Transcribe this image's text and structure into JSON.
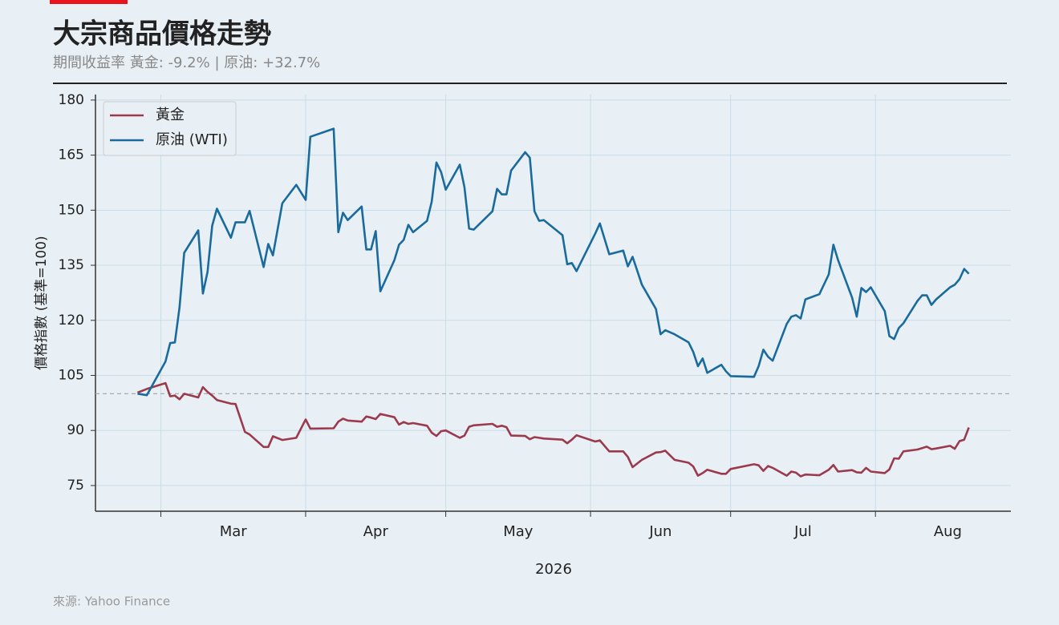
{
  "chart_data": {
    "type": "line",
    "title": "大宗商品價格走勢",
    "subtitle": "期間收益率 黃金: -9.2% | 原油: +32.7%",
    "xlabel": "2026",
    "ylabel": "價格指數 (基準=100)",
    "source": "來源: Yahoo Finance",
    "x": [
      "2026-02-24",
      "2026-02-26",
      "2026-03-02",
      "2026-03-03",
      "2026-03-04",
      "2026-03-05",
      "2026-03-06",
      "2026-03-09",
      "2026-03-10",
      "2026-03-11",
      "2026-03-12",
      "2026-03-13",
      "2026-03-16",
      "2026-03-17",
      "2026-03-19",
      "2026-03-20",
      "2026-03-23",
      "2026-03-24",
      "2026-03-25",
      "2026-03-27",
      "2026-03-30",
      "2026-04-01",
      "2026-04-02",
      "2026-04-07",
      "2026-04-08",
      "2026-04-09",
      "2026-04-10",
      "2026-04-13",
      "2026-04-14",
      "2026-04-15",
      "2026-04-16",
      "2026-04-17",
      "2026-04-20",
      "2026-04-21",
      "2026-04-22",
      "2026-04-23",
      "2026-04-24",
      "2026-04-27",
      "2026-04-28",
      "2026-04-29",
      "2026-04-30",
      "2026-05-01",
      "2026-05-04",
      "2026-05-05",
      "2026-05-06",
      "2026-05-07",
      "2026-05-11",
      "2026-05-12",
      "2026-05-13",
      "2026-05-14",
      "2026-05-15",
      "2026-05-18",
      "2026-05-19",
      "2026-05-20",
      "2026-05-21",
      "2026-05-22",
      "2026-05-26",
      "2026-05-27",
      "2026-05-28",
      "2026-05-29",
      "2026-06-02",
      "2026-06-03",
      "2026-06-05",
      "2026-06-08",
      "2026-06-09",
      "2026-06-10",
      "2026-06-12",
      "2026-06-15",
      "2026-06-16",
      "2026-06-17",
      "2026-06-19",
      "2026-06-22",
      "2026-06-23",
      "2026-06-24",
      "2026-06-25",
      "2026-06-26",
      "2026-06-29",
      "2026-06-30",
      "2026-07-01",
      "2026-07-06",
      "2026-07-07",
      "2026-07-08",
      "2026-07-09",
      "2026-07-10",
      "2026-07-13",
      "2026-07-14",
      "2026-07-15",
      "2026-07-16",
      "2026-07-17",
      "2026-07-20",
      "2026-07-22",
      "2026-07-23",
      "2026-07-24",
      "2026-07-27",
      "2026-07-28",
      "2026-07-29",
      "2026-07-30",
      "2026-07-31",
      "2026-08-03",
      "2026-08-04",
      "2026-08-05",
      "2026-08-06",
      "2026-08-07",
      "2026-08-10",
      "2026-08-11",
      "2026-08-12",
      "2026-08-13",
      "2026-08-14",
      "2026-08-17",
      "2026-08-18",
      "2026-08-19",
      "2026-08-20",
      "2026-08-21"
    ],
    "series": [
      {
        "name": "黃金",
        "color": "#9b3a4d",
        "values": [
          100.3,
          101.3,
          102.9,
          99.3,
          99.5,
          98.5,
          100,
          99,
          101.8,
          100.5,
          99.5,
          98.3,
          97.3,
          97.2,
          89.6,
          88.9,
          85.5,
          85.5,
          88.4,
          87.4,
          88,
          93,
          90.5,
          90.6,
          92.4,
          93.2,
          92.7,
          92.4,
          93.8,
          93.5,
          93.1,
          94.5,
          93.6,
          91.6,
          92.3,
          91.8,
          92,
          91.3,
          89.4,
          88.5,
          89.8,
          90,
          88,
          88.6,
          91,
          91.4,
          91.8,
          91,
          91.3,
          90.9,
          88.6,
          88.5,
          87.6,
          88.2,
          88,
          87.8,
          87.5,
          86.5,
          87.5,
          88.7,
          87,
          87.3,
          84.3,
          84.3,
          82.8,
          80,
          82,
          84,
          84.1,
          84.5,
          82,
          81.2,
          80.2,
          77.7,
          78.4,
          79.3,
          78.2,
          78.2,
          79.5,
          80.8,
          80.5,
          79,
          80.3,
          79.8,
          77.7,
          78.8,
          78.5,
          77.5,
          78,
          77.8,
          79.3,
          80.6,
          78.8,
          79.2,
          78.6,
          78.5,
          79.8,
          78.8,
          78.4,
          79.4,
          82.4,
          82.3,
          84.3,
          84.8,
          85.2,
          85.6,
          84.9,
          85.1,
          85.8,
          85,
          87.1,
          87.5,
          90.8
        ]
      },
      {
        "name": "原油 (WTI)",
        "color": "#1a6b9c",
        "values": [
          100,
          99.6,
          108.8,
          113.8,
          114,
          123.6,
          138.4,
          144.5,
          127.3,
          133.2,
          145.8,
          150.4,
          142.5,
          146.7,
          146.7,
          149.8,
          134.5,
          140.8,
          137.7,
          151.9,
          156.9,
          152.8,
          170,
          172.2,
          144,
          149.3,
          147.3,
          151,
          139.3,
          139.3,
          144.3,
          127.9,
          136.4,
          140.6,
          141.9,
          146,
          144,
          147.1,
          152.3,
          163,
          160.4,
          155.6,
          162.4,
          156.3,
          145,
          144.7,
          149.7,
          155.8,
          154.3,
          154.3,
          160.8,
          165.8,
          164.3,
          149.7,
          147.1,
          147.3,
          143.2,
          135.3,
          135.6,
          133.4,
          143.6,
          146.4,
          138,
          139,
          134.7,
          137.3,
          129.7,
          123.1,
          116.2,
          117.3,
          116.2,
          114,
          111.4,
          107.5,
          109.6,
          105.7,
          107.9,
          106.1,
          104.8,
          104.6,
          107.5,
          112,
          110.1,
          109,
          119,
          121,
          121.4,
          120.5,
          125.7,
          127.1,
          132.5,
          140.6,
          136.4,
          126.2,
          121,
          128.8,
          127.7,
          129,
          122.5,
          115.7,
          114.9,
          117.9,
          119.2,
          125.3,
          126.8,
          126.8,
          124.2,
          125.7,
          129,
          129.7,
          131.2,
          134,
          132.7
        ]
      }
    ],
    "xlim": [
      "2026-02-15",
      "2026-08-30"
    ],
    "xticks": [
      {
        "value": "2026-03",
        "label": "Mar"
      },
      {
        "value": "2026-04",
        "label": "Apr"
      },
      {
        "value": "2026-05",
        "label": "May"
      },
      {
        "value": "2026-06",
        "label": "Jun"
      },
      {
        "value": "2026-07",
        "label": "Jul"
      },
      {
        "value": "2026-08",
        "label": "Aug"
      }
    ],
    "ylim": [
      68,
      181.5
    ],
    "yticks": [
      75,
      90,
      105,
      120,
      135,
      150,
      165,
      180
    ],
    "reference_line": 100,
    "grid": true,
    "legend": "upper-left"
  }
}
